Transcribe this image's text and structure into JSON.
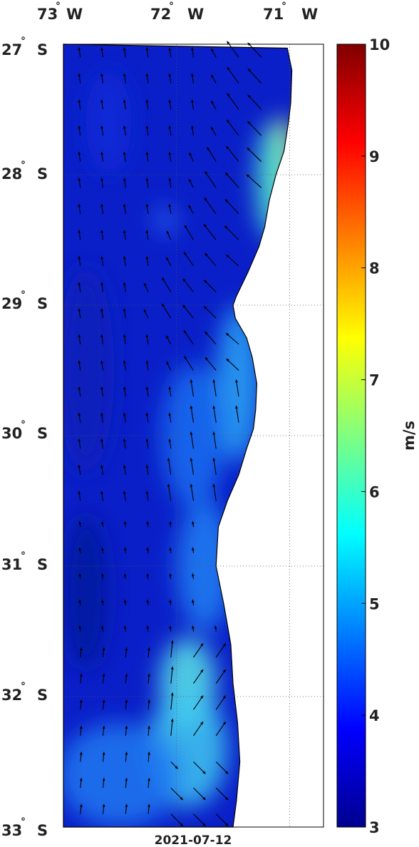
{
  "map": {
    "type": "wind speed field with vector arrows",
    "extent": {
      "lon_min": -73.0,
      "lon_max": -70.7,
      "lat_min": -33.0,
      "lat_max": -27.0
    },
    "lon_ticks": [
      {
        "value": -73,
        "deg": "73",
        "hemi": "W"
      },
      {
        "value": -72,
        "deg": "72",
        "hemi": "W"
      },
      {
        "value": -71,
        "deg": "71",
        "hemi": "W"
      }
    ],
    "lat_ticks": [
      {
        "value": -27,
        "deg": "27",
        "hemi": "S"
      },
      {
        "value": -28,
        "deg": "28",
        "hemi": "S"
      },
      {
        "value": -29,
        "deg": "29",
        "hemi": "S"
      },
      {
        "value": -30,
        "deg": "30",
        "hemi": "S"
      },
      {
        "value": -31,
        "deg": "31",
        "hemi": "S"
      },
      {
        "value": -32,
        "deg": "32",
        "hemi": "S"
      },
      {
        "value": -33,
        "deg": "33",
        "hemi": "S"
      }
    ],
    "degree_symbol": "°",
    "date": "2021-07-12",
    "grid": "dotted",
    "land_color": "#ffffff",
    "arrow_color": "#000000"
  },
  "colorbar": {
    "label": "m/s",
    "min": 3,
    "max": 10,
    "tick_labels": [
      "3",
      "4",
      "5",
      "6",
      "7",
      "8",
      "9",
      "10"
    ],
    "colormap": "jet"
  }
}
